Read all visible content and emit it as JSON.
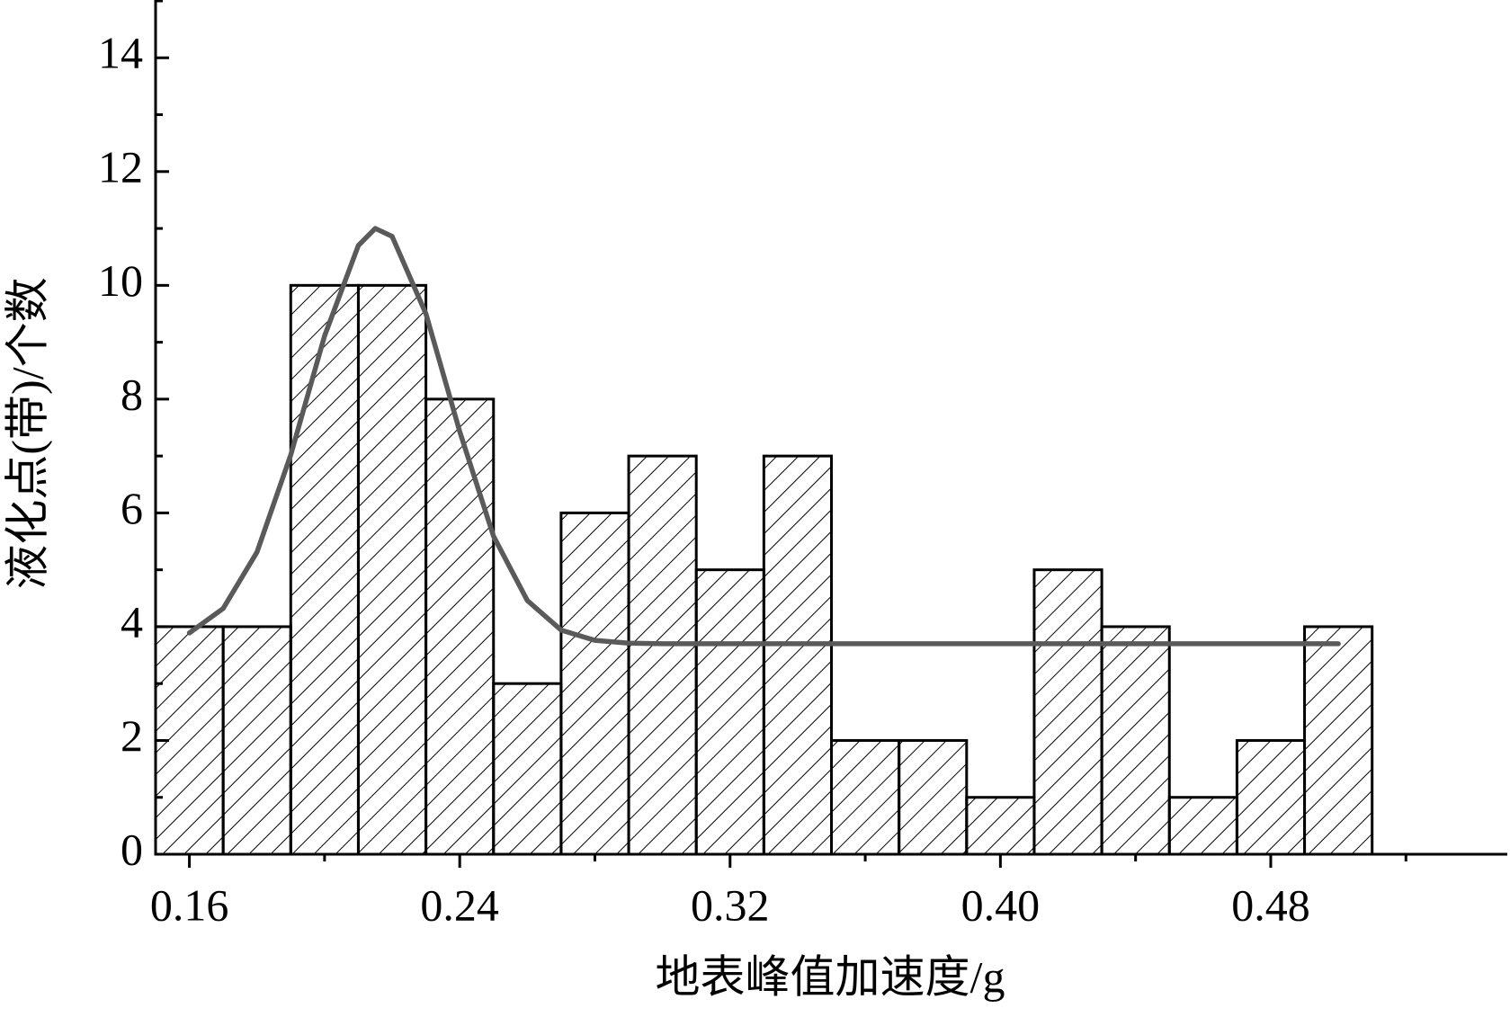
{
  "chart_data": {
    "type": "histogram",
    "x_label": "地表峰值加速度/g",
    "y_label": "液化点(带)/个数",
    "bins": [
      0.15,
      0.17,
      0.19,
      0.21,
      0.23,
      0.25,
      0.27,
      0.29,
      0.31,
      0.33,
      0.35,
      0.37,
      0.39,
      0.41,
      0.43,
      0.45,
      0.47,
      0.49,
      0.51
    ],
    "values": [
      4,
      4,
      10,
      10,
      8,
      3,
      6,
      7,
      5,
      7,
      2,
      2,
      1,
      5,
      4,
      1,
      2,
      4
    ],
    "color": "#000000",
    "hatch": "diagonal",
    "fit": {
      "color": "#5a5a5a",
      "x": [
        0.16,
        0.17,
        0.18,
        0.19,
        0.2,
        0.21,
        0.215,
        0.22,
        0.23,
        0.24,
        0.25,
        0.26,
        0.27,
        0.28,
        0.29,
        0.3,
        0.32,
        0.34,
        0.36,
        0.38,
        0.4,
        0.42,
        0.44,
        0.46,
        0.48,
        0.5
      ],
      "values": [
        3.89,
        4.32,
        5.31,
        7.02,
        9.11,
        10.7,
        11.0,
        10.86,
        9.5,
        7.43,
        5.59,
        4.46,
        3.94,
        3.76,
        3.71,
        3.7,
        3.7,
        3.7,
        3.7,
        3.7,
        3.7,
        3.7,
        3.7,
        3.7,
        3.7,
        3.7
      ]
    },
    "xlim": [
      0.15,
      0.55
    ],
    "xticks": [
      {
        "value": 0.16,
        "label": "0.16"
      },
      {
        "value": 0.24,
        "label": "0.24"
      },
      {
        "value": 0.32,
        "label": "0.32"
      },
      {
        "value": 0.4,
        "label": "0.40"
      },
      {
        "value": 0.48,
        "label": "0.48"
      }
    ],
    "xminorticks": [
      0.2,
      0.28,
      0.36,
      0.44,
      0.52
    ],
    "ylim": [
      0,
      15
    ],
    "yticks": [
      0,
      2,
      4,
      6,
      8,
      10,
      12,
      14
    ],
    "yminorticks": [
      1,
      3,
      5,
      7,
      9,
      11,
      13,
      15
    ],
    "grid": false
  }
}
